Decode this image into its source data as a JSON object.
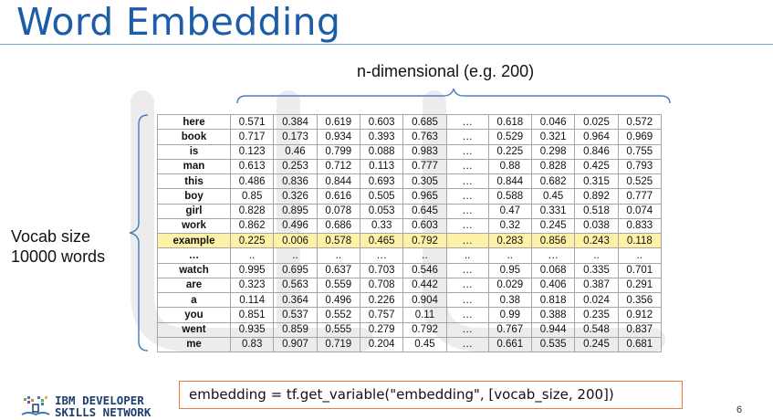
{
  "slide": {
    "title": "Word Embedding",
    "page_number": "6"
  },
  "annotations": {
    "dimension_label": "n-dimensional (e.g. 200)",
    "vocab_line1": "Vocab size",
    "vocab_line2": "10000 words"
  },
  "table": {
    "rows": [
      {
        "word": "here",
        "values": [
          "0.571",
          "0.384",
          "0.619",
          "0.603",
          "0.685",
          "…",
          "0.618",
          "0.046",
          "0.025",
          "0.572"
        ]
      },
      {
        "word": "book",
        "values": [
          "0.717",
          "0.173",
          "0.934",
          "0.393",
          "0.763",
          "…",
          "0.529",
          "0.321",
          "0.964",
          "0.969"
        ]
      },
      {
        "word": "is",
        "values": [
          "0.123",
          "0.46",
          "0.799",
          "0.088",
          "0.983",
          "…",
          "0.225",
          "0.298",
          "0.846",
          "0.755"
        ]
      },
      {
        "word": "man",
        "values": [
          "0.613",
          "0.253",
          "0.712",
          "0.113",
          "0.777",
          "…",
          "0.88",
          "0.828",
          "0.425",
          "0.793"
        ]
      },
      {
        "word": "this",
        "values": [
          "0.486",
          "0.836",
          "0.844",
          "0.693",
          "0.305",
          "…",
          "0.844",
          "0.682",
          "0.315",
          "0.525"
        ]
      },
      {
        "word": "boy",
        "values": [
          "0.85",
          "0.326",
          "0.616",
          "0.505",
          "0.965",
          "…",
          "0.588",
          "0.45",
          "0.892",
          "0.777"
        ]
      },
      {
        "word": "girl",
        "values": [
          "0.828",
          "0.895",
          "0.078",
          "0.053",
          "0.645",
          "…",
          "0.47",
          "0.331",
          "0.518",
          "0.074"
        ]
      },
      {
        "word": "work",
        "values": [
          "0.862",
          "0.496",
          "0.686",
          "0.33",
          "0.603",
          "…",
          "0.32",
          "0.245",
          "0.038",
          "0.833"
        ]
      },
      {
        "word": "example",
        "values": [
          "0.225",
          "0.006",
          "0.578",
          "0.465",
          "0.792",
          "…",
          "0.283",
          "0.856",
          "0.243",
          "0.118"
        ],
        "highlighted": true
      },
      {
        "word": "…",
        "values": [
          "..",
          "..",
          "..",
          "…",
          "..",
          "..",
          "..",
          "…",
          "..",
          ".."
        ]
      },
      {
        "word": "watch",
        "values": [
          "0.995",
          "0.695",
          "0.637",
          "0.703",
          "0.546",
          "…",
          "0.95",
          "0.068",
          "0.335",
          "0.701"
        ]
      },
      {
        "word": "are",
        "values": [
          "0.323",
          "0.563",
          "0.559",
          "0.708",
          "0.442",
          "…",
          "0.029",
          "0.406",
          "0.387",
          "0.291"
        ]
      },
      {
        "word": "a",
        "values": [
          "0.114",
          "0.364",
          "0.496",
          "0.226",
          "0.904",
          "…",
          "0.38",
          "0.818",
          "0.024",
          "0.356"
        ]
      },
      {
        "word": "you",
        "values": [
          "0.851",
          "0.537",
          "0.552",
          "0.757",
          "0.11",
          "…",
          "0.99",
          "0.388",
          "0.235",
          "0.912"
        ]
      },
      {
        "word": "went",
        "values": [
          "0.935",
          "0.859",
          "0.555",
          "0.279",
          "0.792",
          "…",
          "0.767",
          "0.944",
          "0.548",
          "0.837"
        ]
      },
      {
        "word": "me",
        "values": [
          "0.83",
          "0.907",
          "0.719",
          "0.204",
          "0.45",
          "…",
          "0.661",
          "0.535",
          "0.245",
          "0.681"
        ]
      }
    ]
  },
  "code": {
    "text": "embedding = tf.get_variable(\"embedding\", [vocab_size, 200])"
  },
  "logo": {
    "line1": "IBM DEVELOPER",
    "line2": "SKILLS NETWORK",
    "icon": "ibm-book-icon"
  },
  "colors": {
    "title": "#1d5ca6",
    "highlight_row": "#fff2a8",
    "code_border": "#e57a3d",
    "braces": "#4f81bd",
    "logo_text": "#1f3f6e"
  }
}
